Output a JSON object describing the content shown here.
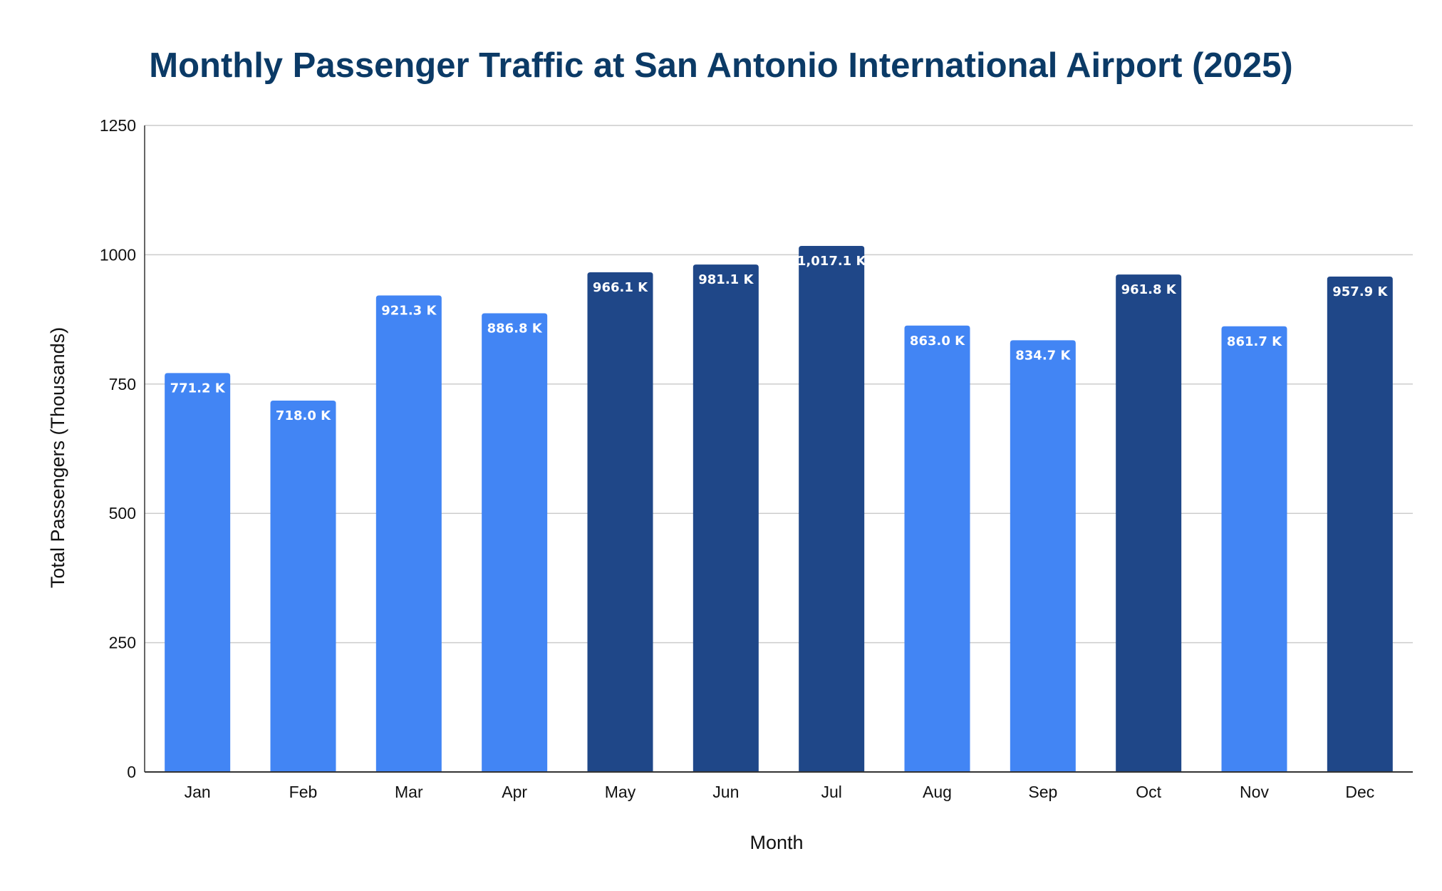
{
  "chart_data": {
    "type": "bar",
    "title": "Monthly Passenger Traffic at San Antonio International Airport (2025)",
    "xlabel": "Month",
    "ylabel": "Total Passengers (Thousands)",
    "ylim": [
      0,
      1250
    ],
    "yticks": [
      "0",
      "250",
      "500",
      "750",
      "1000",
      "1250"
    ],
    "grid": true,
    "legend": "none",
    "categories": [
      "Jan",
      "Feb",
      "Mar",
      "Apr",
      "May",
      "Jun",
      "Jul",
      "Aug",
      "Sep",
      "Oct",
      "Nov",
      "Dec"
    ],
    "values": [
      771.2,
      718.0,
      921.3,
      886.8,
      966.1,
      981.1,
      1017.1,
      863.0,
      834.7,
      961.8,
      861.7,
      957.9
    ],
    "data_labels": [
      "771.2 K",
      "718.0 K",
      "921.3 K",
      "886.8 K",
      "966.1 K",
      "981.1 K",
      "1,017.1 K",
      "863.0 K",
      "834.7 K",
      "961.8 K",
      "861.7 K",
      "957.9 K"
    ],
    "highlighted": [
      false,
      false,
      false,
      false,
      true,
      true,
      true,
      false,
      false,
      true,
      false,
      true
    ],
    "colors": {
      "bar": "#4285f4",
      "bar_highlight": "#1f4788",
      "title": "#0b3a66",
      "grid": "#cccccc",
      "axis": "#333333",
      "text": "#111111",
      "label": "#ffffff"
    }
  }
}
